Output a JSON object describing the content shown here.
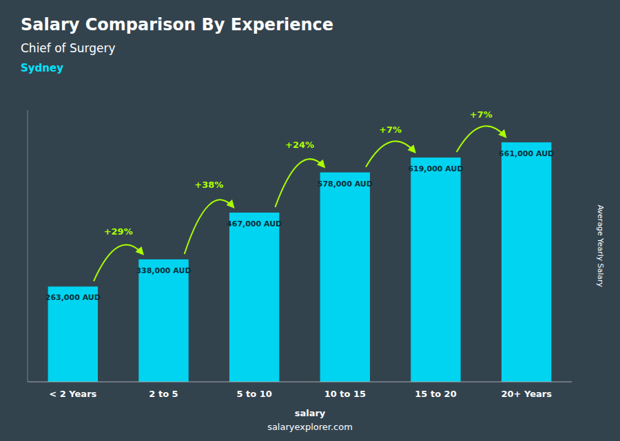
{
  "chart_data": {
    "type": "bar",
    "title": "Salary Comparison By Experience",
    "subtitle": "Chief of Surgery",
    "city": "Sydney",
    "city_color": "#00e5ff",
    "ylabel": "Average Yearly Salary",
    "categories": [
      "< 2 Years",
      "2 to 5",
      "5 to 10",
      "10 to 15",
      "15 to 20",
      "20+ Years"
    ],
    "values": [
      263000,
      338000,
      467000,
      578000,
      619000,
      661000
    ],
    "value_labels": [
      "263,000 AUD",
      "338,000 AUD",
      "467,000 AUD",
      "578,000 AUD",
      "619,000 AUD",
      "661,000 AUD"
    ],
    "data_labels": true,
    "color": "#00d4f0",
    "annotations": [
      "+29%",
      "+38%",
      "+24%",
      "+7%",
      "+7%"
    ],
    "annotation_color": "#aaff00",
    "footer_bold": "salary",
    "footer": "salaryexplorer.com",
    "ylim": [
      0,
      750000
    ],
    "tick_labels": "x",
    "grid": false
  }
}
